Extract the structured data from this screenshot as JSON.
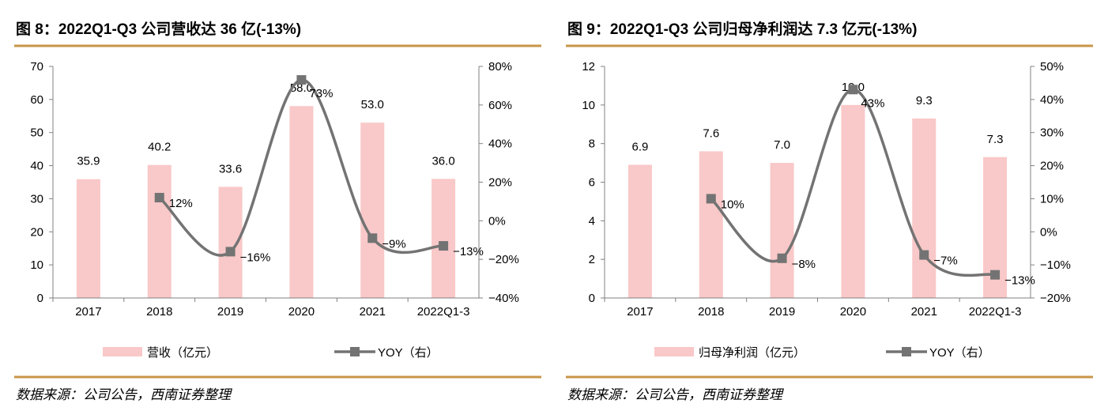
{
  "chart_data": [
    {
      "type": "bar+line",
      "title": "图 8：2022Q1-Q3 公司营收达 36 亿(-13%)",
      "categories": [
        "2017",
        "2018",
        "2019",
        "2020",
        "2021",
        "2022Q1-3"
      ],
      "series": [
        {
          "name": "营收（亿元）",
          "type": "bar",
          "axis": "left",
          "values": [
            35.9,
            40.2,
            33.6,
            58.0,
            53.0,
            36.0
          ],
          "labels": [
            "35.9",
            "40.2",
            "33.6",
            "58.0",
            "53.0",
            "36.0"
          ],
          "color": "#f9c8c8"
        },
        {
          "name": "YOY（右）",
          "type": "line",
          "axis": "right",
          "values": [
            null,
            12,
            -16,
            73,
            -9,
            -13
          ],
          "labels": [
            "",
            "12%",
            "−16%",
            "73%",
            "−9%",
            "−13%"
          ],
          "color": "#737373"
        }
      ],
      "left_axis": {
        "min": 0,
        "max": 70,
        "ticks": [
          "0",
          "10",
          "20",
          "30",
          "40",
          "50",
          "60",
          "70"
        ]
      },
      "right_axis": {
        "min": -40,
        "max": 80,
        "ticks": [
          "−40%",
          "−20%",
          "0%",
          "20%",
          "40%",
          "60%",
          "80%"
        ]
      },
      "legend": "bottom",
      "grid": false,
      "source": "数据来源：公司公告，西南证券整理"
    },
    {
      "type": "bar+line",
      "title": "图 9：2022Q1-Q3 公司归母净利润达 7.3 亿元(-13%)",
      "categories": [
        "2017",
        "2018",
        "2019",
        "2020",
        "2021",
        "2022Q1-3"
      ],
      "series": [
        {
          "name": "归母净利润（亿元）",
          "type": "bar",
          "axis": "left",
          "values": [
            6.9,
            7.6,
            7.0,
            10.0,
            9.3,
            7.3
          ],
          "labels": [
            "6.9",
            "7.6",
            "7.0",
            "10.0",
            "9.3",
            "7.3"
          ],
          "color": "#f9c8c8"
        },
        {
          "name": "YOY（右）",
          "type": "line",
          "axis": "right",
          "values": [
            null,
            10,
            -8,
            43,
            -7,
            -13
          ],
          "labels": [
            "",
            "10%",
            "−8%",
            "43%",
            "−7%",
            "−13%"
          ],
          "color": "#737373"
        }
      ],
      "left_axis": {
        "min": 0,
        "max": 12,
        "ticks": [
          "0",
          "2",
          "4",
          "6",
          "8",
          "10",
          "12"
        ]
      },
      "right_axis": {
        "min": -20,
        "max": 50,
        "ticks": [
          "−20%",
          "−10%",
          "0%",
          "10%",
          "20%",
          "30%",
          "40%",
          "50%"
        ]
      },
      "legend": "bottom",
      "grid": false,
      "source": "数据来源：公司公告，西南证券整理"
    }
  ],
  "colors": {
    "rule": "#c8964a",
    "bar": "#f9c8c8",
    "line": "#737373",
    "axis": "#808080"
  }
}
